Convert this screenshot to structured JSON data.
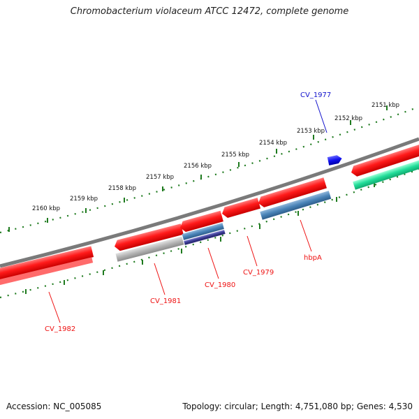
{
  "title": "Chromobacterium violaceum ATCC 12472, complete genome",
  "footer": {
    "accession": "Accession: NC_005085",
    "stats": "Topology: circular; Length: 4,751,080 bp; Genes: 4,530"
  },
  "ruler_labels": [
    "2151 kbp",
    "2152 kbp",
    "2153 kbp",
    "2154 kbp",
    "2155 kbp",
    "2156 kbp",
    "2157 kbp",
    "2158 kbp",
    "2159 kbp",
    "2160 kbp"
  ],
  "genes": {
    "cv1977": "CV_1977",
    "hbpA": "hbpA",
    "cv1979": "CV_1979",
    "cv1980": "CV_1980",
    "cv1981": "CV_1981",
    "cv1982": "CV_1982"
  },
  "colors": {
    "backbone": "#7a7a7a",
    "ruler_green": "#1e7a1e",
    "gene_red": "#ee1111",
    "gene_blue_label": "#1111cc",
    "cds_steelblue": "#4a84b8",
    "cds_gray": "#b0b0b0",
    "cds_navy": "#3a3a90",
    "cds_teal": "#22dd99",
    "cds_blue": "#1111ee"
  }
}
